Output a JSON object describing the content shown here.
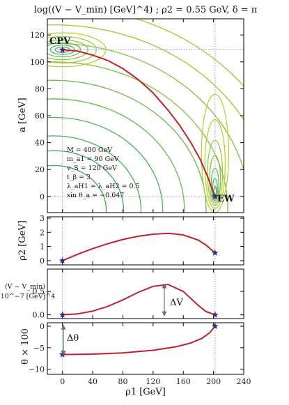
{
  "chart_data": [
    {
      "type": "contour",
      "title": "log((V − V_min) [GeV]^4) ; ρ2 = 0.55 GeV, δ = π",
      "xlabel": "",
      "ylabel": "a [GeV]",
      "xlim": [
        -20,
        240
      ],
      "ylim": [
        -12,
        132
      ],
      "yticks": [
        "0",
        "20",
        "40",
        "60",
        "80",
        "100",
        "120"
      ],
      "grid": false,
      "minima": [
        {
          "name": "CPV",
          "x": 0,
          "y": 109
        },
        {
          "name": "EW",
          "x": 202,
          "y": 0
        }
      ],
      "path": {
        "x": [
          0,
          20,
          40,
          60,
          80,
          100,
          120,
          140,
          155,
          170,
          182,
          192,
          198,
          202
        ],
        "y": [
          109,
          108,
          105,
          101,
          95,
          87,
          77,
          64,
          53,
          40,
          28,
          15,
          6,
          0
        ]
      },
      "parameters": [
        "M = 400 GeV",
        "m_a1 = 90 GeV",
        "v_S = 120 GeV",
        "t_β = 3",
        "λ_aH1 = λ_aH2 = 0.5",
        "sin θ_a = −0.047"
      ]
    },
    {
      "type": "line",
      "ylabel": "ρ2 [GeV]",
      "ylim": [
        -0.3,
        3.1
      ],
      "yticks": [
        "0",
        "1",
        "2",
        "3"
      ],
      "x": [
        0,
        20,
        40,
        60,
        80,
        100,
        120,
        140,
        160,
        180,
        190,
        202
      ],
      "y": [
        0.0,
        0.45,
        0.85,
        1.2,
        1.5,
        1.72,
        1.87,
        1.93,
        1.82,
        1.45,
        1.1,
        0.55
      ],
      "endpoints": [
        {
          "x": 0,
          "y": 0.0
        },
        {
          "x": 202,
          "y": 0.55
        }
      ]
    },
    {
      "type": "line",
      "ylabel_line1": "(V − V_min)",
      "ylabel_line2": "×10^−7 [GeV]^4",
      "ylim": [
        -0.08,
        0.98
      ],
      "yticks": [
        "0.0",
        "0.5"
      ],
      "x": [
        0,
        20,
        40,
        60,
        80,
        100,
        120,
        140,
        160,
        180,
        190,
        202
      ],
      "y": [
        0.0,
        0.02,
        0.08,
        0.18,
        0.32,
        0.48,
        0.61,
        0.65,
        0.5,
        0.2,
        0.07,
        0.0
      ],
      "endpoints": [
        {
          "x": 0,
          "y": 0.0
        },
        {
          "x": 202,
          "y": 0.0
        }
      ],
      "annotation": "ΔV"
    },
    {
      "type": "line",
      "ylabel": "θ × 100",
      "xlabel": "ρ1 [GeV]",
      "xticks": [
        "0",
        "40",
        "80",
        "120",
        "160",
        "200",
        "240"
      ],
      "ylim": [
        -11.2,
        0.8
      ],
      "yticks": [
        "−10",
        "−5",
        "0"
      ],
      "x": [
        0,
        40,
        80,
        120,
        150,
        170,
        185,
        195,
        202
      ],
      "y": [
        -6.6,
        -6.5,
        -6.2,
        -5.6,
        -4.8,
        -3.9,
        -2.8,
        -1.5,
        0.0
      ],
      "endpoints": [
        {
          "x": 0,
          "y": -6.6
        },
        {
          "x": 202,
          "y": 0.0
        }
      ],
      "annotation": "Δθ"
    }
  ],
  "colors": {
    "path": "#c0222a",
    "star": "#3f2b7a",
    "dotted": "#8aa0b8",
    "arrow": "#607080"
  }
}
